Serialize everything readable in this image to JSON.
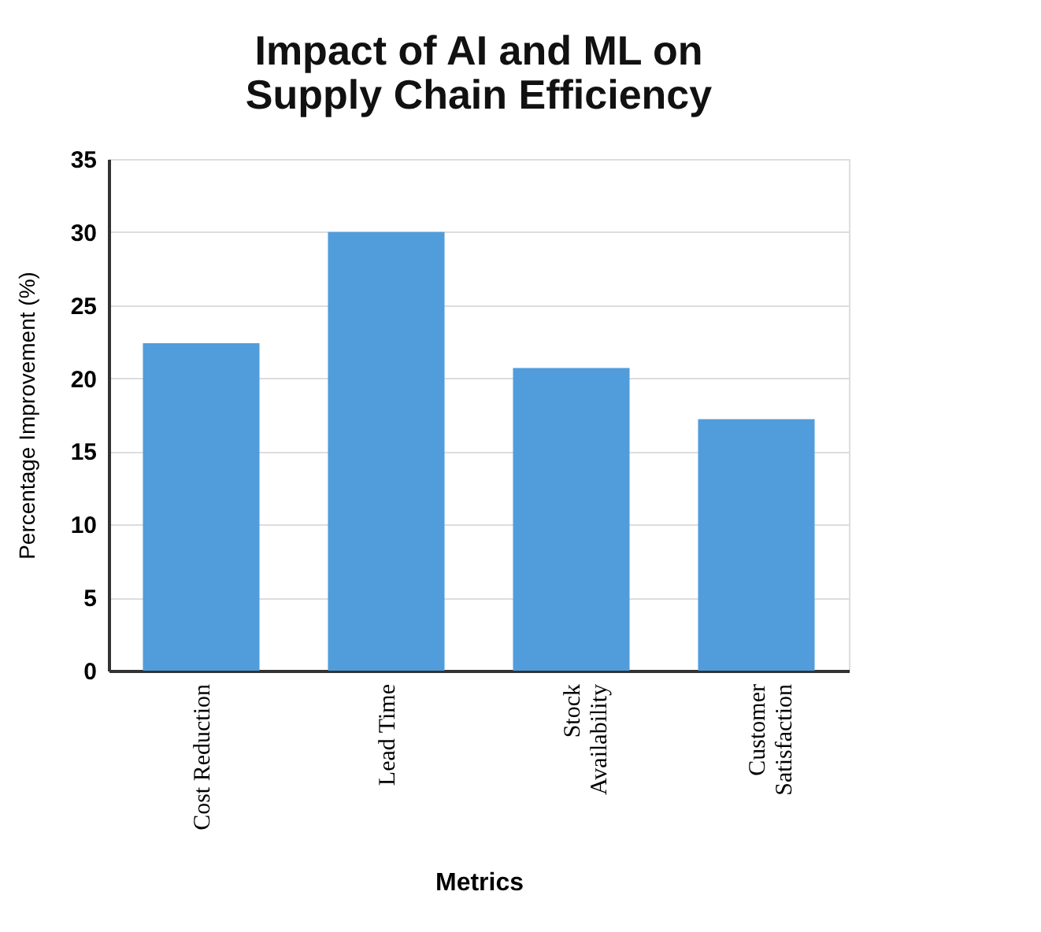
{
  "chart_data": {
    "type": "bar",
    "title": "Impact of AI and ML on\nSupply Chain Efficiency",
    "xlabel": "Metrics",
    "ylabel": "Percentage Improvement (%)",
    "categories": [
      "Cost Reduction",
      "Lead Time",
      "Stock\nAvailability",
      "Customer\nSatisfaction"
    ],
    "values": [
      22.4,
      30.0,
      20.7,
      17.2
    ],
    "color": "#519ddb",
    "ylim": [
      0,
      35
    ],
    "yticks": [
      0,
      5,
      10,
      15,
      20,
      25,
      30,
      35
    ],
    "grid": "y"
  }
}
